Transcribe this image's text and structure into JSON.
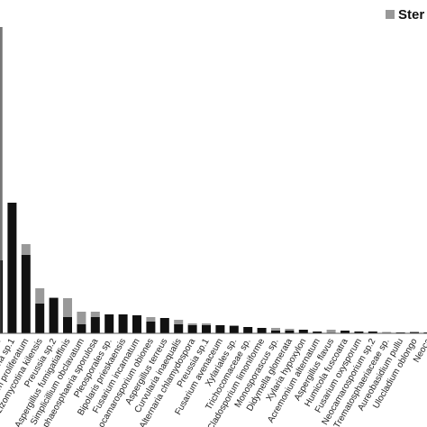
{
  "chart_data": {
    "type": "stacked_bar",
    "categories": [
      "cus",
      "tina sp.1",
      "ocladium proliferatum",
      "Pezizomycotina kilensis",
      "Preussia sp.2",
      "Aspergillus fumigatiaffinis",
      "Simplicillium obclavatum",
      "Paraphaeosphaeria sporulosa",
      "Pleosporales sp.",
      "Bipolaris prieskaensis",
      "Fusarium incarnatum",
      "Neocamarosporium obiones",
      "Aspergillus terreus",
      "Curvularia inaequalis",
      "Alternaria chlamydospora",
      "Preussia sp.1",
      "Fusarium avenaceum",
      "Xylariales sp.",
      "Trichocomaceae sp.",
      "Cladosporium limoniforme",
      "Monosporascus sp.",
      "Didymella glomerata",
      "Xylaria hypoxylon",
      "Acremonium alternatum",
      "Aspergillus flavus",
      "Humicola fuscoatra",
      "Fusarium oxysporum",
      "Neocamarosporium sp.2",
      "Trematosphaeriaceae sp.",
      "Aureobasidium pullu",
      "Ulocladium oblongo",
      "Neoca"
    ],
    "series": [
      {
        "color": "#111111",
        "values": [
          81,
          145,
          87,
          33,
          39,
          18,
          10,
          18,
          21,
          21,
          20,
          13,
          17,
          10,
          9,
          9,
          9,
          8,
          7,
          6,
          3,
          3,
          4,
          2,
          0,
          3,
          2,
          2,
          0.5,
          1,
          1,
          1
        ]
      },
      {
        "name": "Ster",
        "color": "#999999",
        "values": [
          259,
          0,
          12,
          17,
          1,
          21,
          14,
          6,
          0,
          0,
          0,
          5,
          0,
          5,
          2,
          2,
          0,
          1,
          0,
          0,
          3,
          2,
          0,
          0,
          4,
          0,
          0,
          0,
          1,
          0,
          1,
          0
        ]
      }
    ],
    "ylim": [
      0,
      340
    ]
  }
}
